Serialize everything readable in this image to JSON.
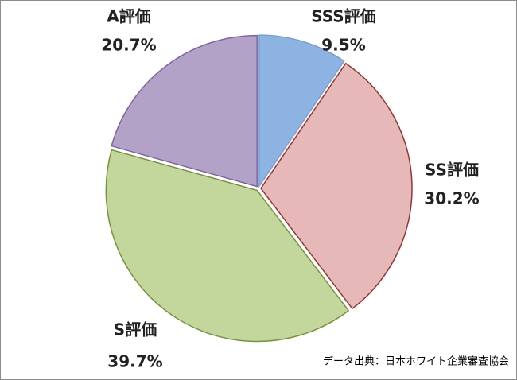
{
  "chart_data": {
    "type": "pie",
    "categories": [
      "SSS評価",
      "SS評価",
      "S評価",
      "A評価"
    ],
    "values": [
      9.5,
      30.2,
      39.7,
      20.7
    ],
    "value_labels": [
      "9.5%",
      "30.2%",
      "39.7%",
      "20.7%"
    ],
    "colors": [
      "#8db3e2",
      "#e6b9b8",
      "#c3d69b",
      "#b3a2c7"
    ],
    "edgecolors": [
      "#7a9fd0",
      "#963634",
      "#77933c",
      "#8064a2"
    ],
    "note": "データ出典：日本ホワイト企業審査協会"
  }
}
